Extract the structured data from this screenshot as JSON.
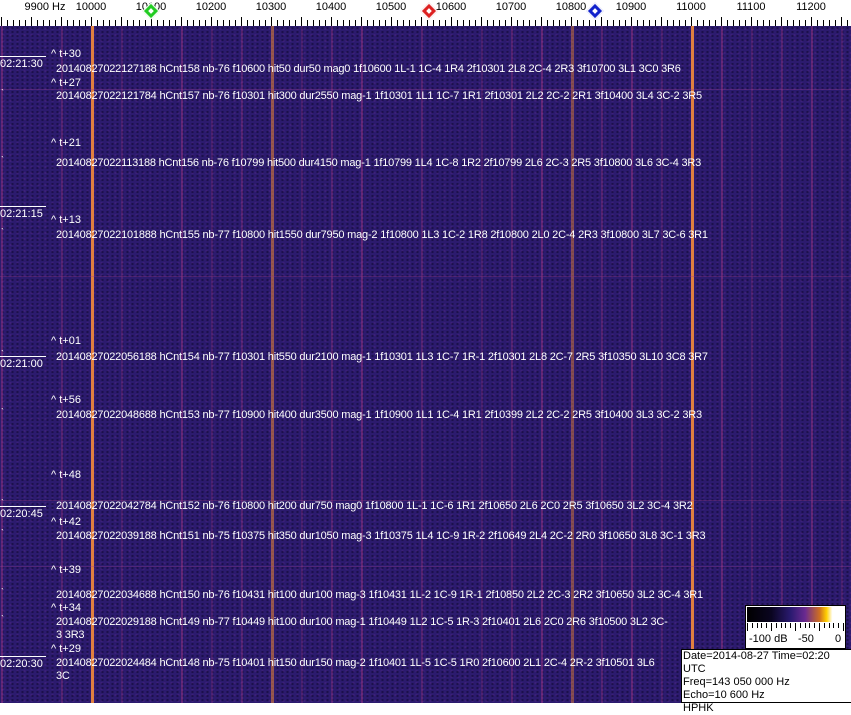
{
  "axis": {
    "unit_label": "9900 Hz",
    "labels": [
      "10000",
      "10100",
      "10200",
      "10300",
      "10400",
      "10500",
      "10600",
      "10700",
      "10800",
      "10900",
      "11000",
      "11100",
      "11200"
    ],
    "markers": [
      {
        "name": "green-marker",
        "color": "#22cc22",
        "freq_hz": 10100
      },
      {
        "name": "red-marker",
        "color": "#dd2222",
        "freq_hz": 10563
      },
      {
        "name": "blue-marker",
        "color": "#1122cc",
        "freq_hz": 10840
      }
    ]
  },
  "colors": {
    "background": "#2c1b6e",
    "strong_line": "#e08040"
  },
  "time_labels": [
    "02:21:30",
    "02:21:15",
    "02:21:00",
    "02:20:45",
    "02:20:30"
  ],
  "events": [
    {
      "t": "^ t+30",
      "text": "20140827022127188 hCnt158 nb-76 f10600 hit50 dur50 mag0 1f10600 1L-1 1C-4 1R4 2f10301 2L8 2C-4 2R3 3f10700 3L1 3C0 3R6"
    },
    {
      "t": "^ t+27",
      "text": "20140827022121784 hCnt157 nb-76 f10301 hit300 dur2550 mag-1 1f10301 1L1 1C-7 1R1 2f10301 2L2 2C-2 2R1 3f10400 3L4 3C-2 3R5"
    },
    {
      "t": "^ t+21",
      "text": "20140827022113188 hCnt156 nb-76 f10799 hit500 dur4150 mag-1 1f10799 1L4 1C-8 1R2 2f10799 2L6 2C-3 2R5 3f10800 3L6 3C-4 3R3"
    },
    {
      "t": "^ t+13",
      "text": "20140827022101888 hCnt155 nb-77 f10800 hit1550 dur7950 mag-2 1f10800 1L3 1C-2 1R8 2f10800 2L0 2C-4 2R3 3f10800 3L7 3C-6 3R1"
    },
    {
      "t": "^ t+01",
      "text": "20140827022056188 hCnt154 nb-77 f10301 hit550 dur2100 mag-1 1f10301 1L3 1C-7 1R-1 2f10301 2L8 2C-7 2R5 3f10350 3L10 3C8 3R7"
    },
    {
      "t": "^ t+56",
      "text": "20140827022048688 hCnt153 nb-77 f10900 hit400 dur3500 mag-1 1f10900 1L1 1C-4 1R1 2f10399 2L2 2C-2 2R5 3f10400 3L3 3C-2 3R3"
    },
    {
      "t": "^ t+48",
      "text": "20140827022042784 hCnt152 nb-76 f10800 hit200 dur750 mag0 1f10800 1L-1 1C-6 1R1 2f10650 2L6 2C0 2R5 3f10650 3L2 3C-4 3R2"
    },
    {
      "t": "^ t+42",
      "text": "20140827022039188 hCnt151 nb-75 f10375 hit350 dur1050 mag-3 1f10375 1L4 1C-9 1R-2 2f10649 2L4 2C-2 2R0 3f10650 3L8 3C-1 3R3"
    },
    {
      "t": "^ t+39",
      "text": "20140827022034688 hCnt150 nb-76 f10431 hit100 dur100 mag-3 1f10431 1L-2 1C-9 1R-1 2f10850 2L2 2C-3 2R2 3f10650 3L2 3C-4 3R1"
    },
    {
      "t": "^ t+34",
      "text": "20140827022029188 hCnt149 nb-77 f10449 hit100 dur100 mag-1 1f10449 1L2 1C-5 1R-3 2f10401 2L6 2C0 2R6 3f10500 3L2 3C-3 3R3"
    },
    {
      "t": "^ t+29",
      "text": "20140827022024484 hCnt148 nb-75 f10401 hit150 dur150 mag-2 1f10401 1L-5 1C-5 1R0 2f10600 2L1 2C-4 2R-2 3f10501 3L6 3C"
    }
  ],
  "colorbar": {
    "labels": [
      "-100 dB",
      "-50",
      "0"
    ]
  },
  "info": {
    "date_time": "Date=2014-08-27 Time=02:20 UTC",
    "freq": "Freq=143 050 000 Hz",
    "echo": "Echo=10 600 Hz",
    "station": "HPHK"
  }
}
